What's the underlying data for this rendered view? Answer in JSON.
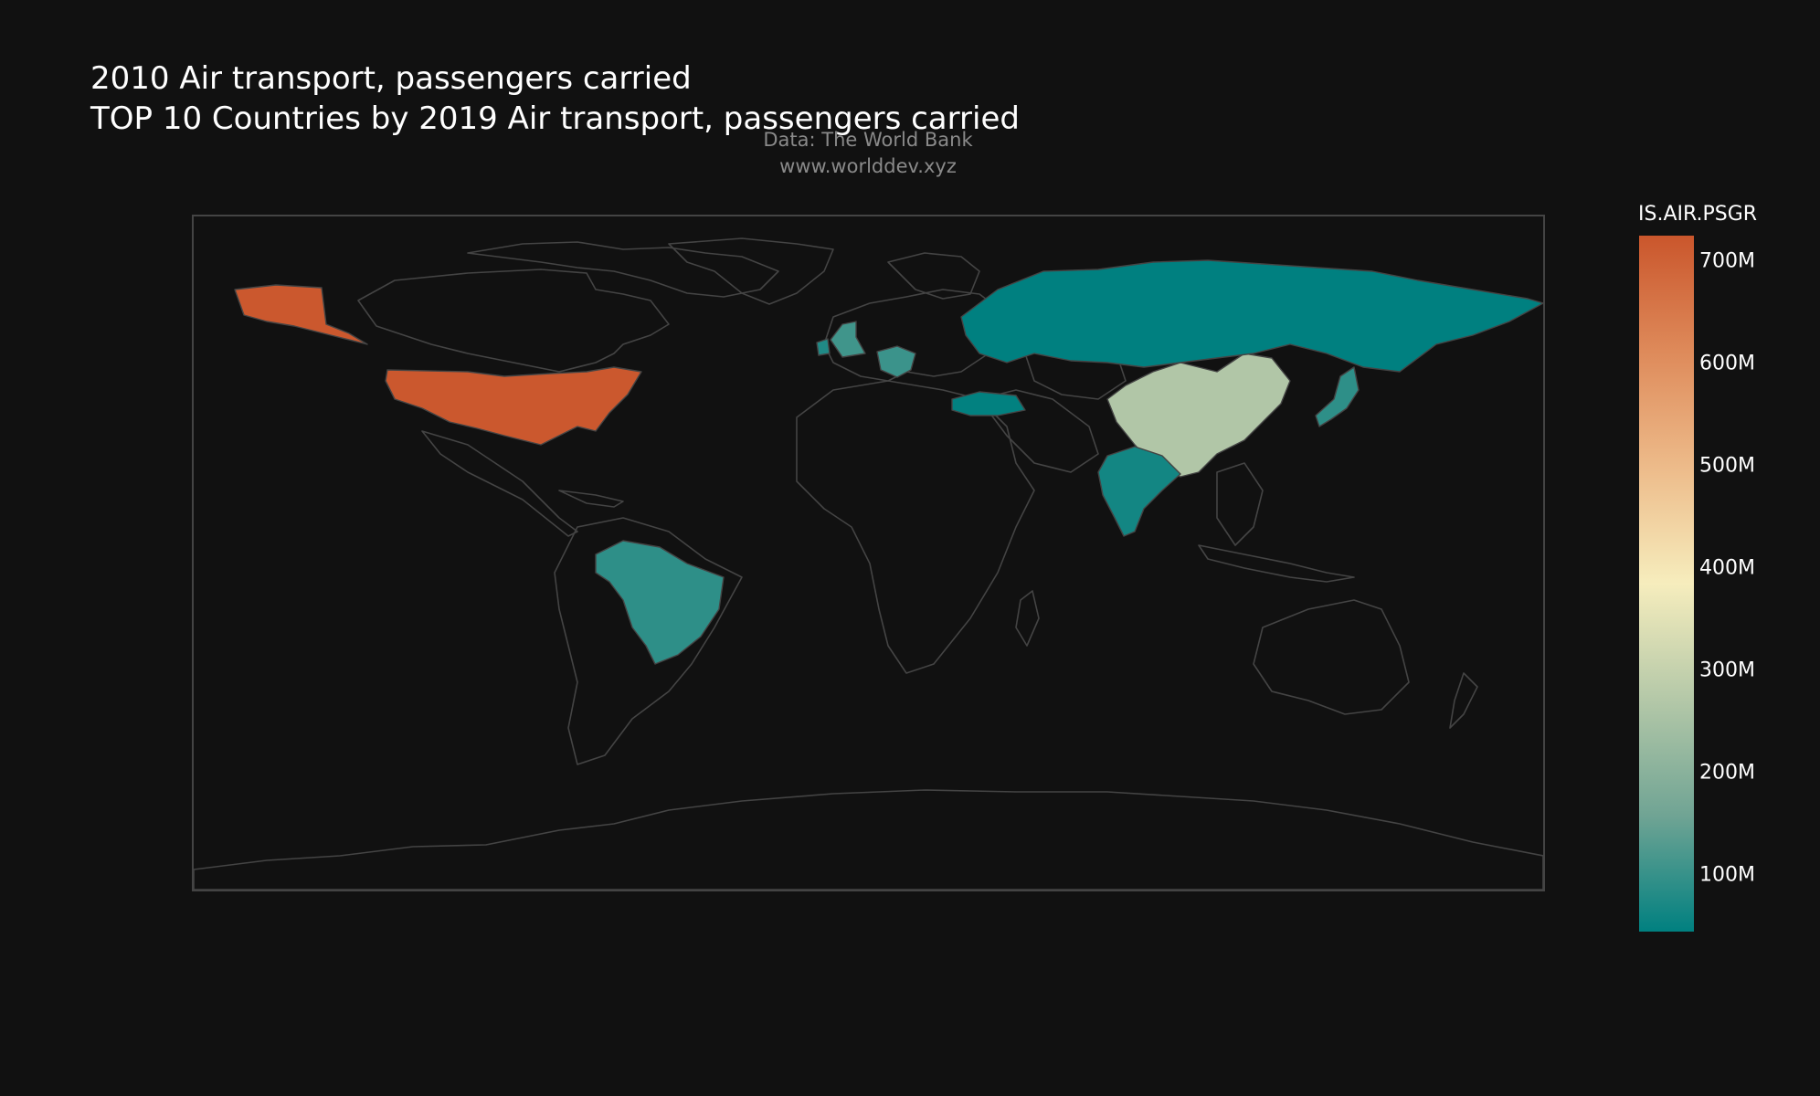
{
  "title": {
    "line1": "2010 Air transport, passengers carried",
    "line2": "TOP 10 Countries by 2019 Air transport, passengers carried"
  },
  "source": {
    "line1": "Data: The World Bank",
    "line2": "www.worlddev.xyz"
  },
  "colors": {
    "background": "#111111",
    "land_outline": "#444444",
    "scale_low": "#008080",
    "scale_mid_low": "#70a494",
    "scale_mid": "#b4c8a8",
    "scale_mid_high": "#f6edbd",
    "scale_high_mid": "#edbb8a",
    "scale_high": "#de8a5a",
    "scale_top": "#ca562c"
  },
  "colorbar": {
    "title": "IS.AIR.PSGR",
    "min": 45000000,
    "max": 725000000,
    "ticks": [
      {
        "value": 700000000,
        "label": "700M"
      },
      {
        "value": 600000000,
        "label": "600M"
      },
      {
        "value": 500000000,
        "label": "500M"
      },
      {
        "value": 400000000,
        "label": "400M"
      },
      {
        "value": 300000000,
        "label": "300M"
      },
      {
        "value": 200000000,
        "label": "200M"
      },
      {
        "value": 100000000,
        "label": "100M"
      }
    ]
  },
  "chart_data": {
    "type": "choropleth",
    "indicator": "IS.AIR.PSGR",
    "year": 2010,
    "projection": "equirectangular",
    "countries": [
      {
        "iso3": "USA",
        "value": 720000000
      },
      {
        "iso3": "CHN",
        "value": 266000000
      },
      {
        "iso3": "GBR",
        "value": 110000000
      },
      {
        "iso3": "DEU",
        "value": 105000000
      },
      {
        "iso3": "BRA",
        "value": 92000000
      },
      {
        "iso3": "JPN",
        "value": 92000000
      },
      {
        "iso3": "IND",
        "value": 64000000
      },
      {
        "iso3": "TUR",
        "value": 47000000
      },
      {
        "iso3": "RUS",
        "value": 45000000
      },
      {
        "iso3": "IRL",
        "value": 77000000
      }
    ]
  }
}
